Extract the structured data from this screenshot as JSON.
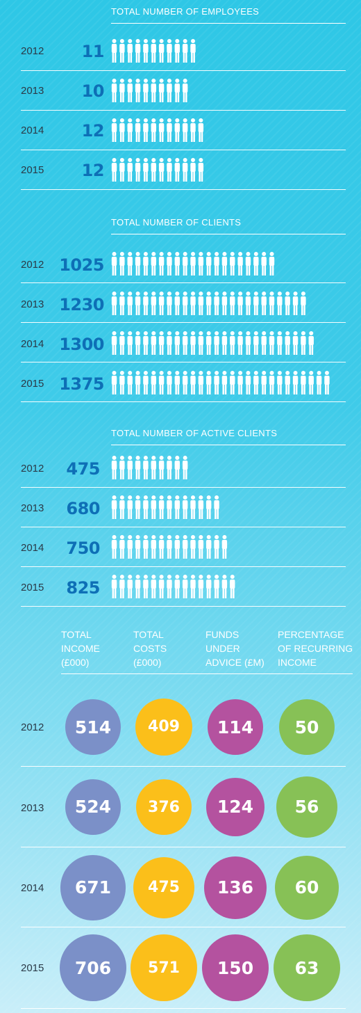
{
  "colors": {
    "income": "#7b90c8",
    "costs": "#fbbf1a",
    "funds": "#b4529f",
    "recurring": "#87c156",
    "number": "#0e6fb6",
    "year": "#2b3a48"
  },
  "icons": [
    "person-icon"
  ],
  "chart_data": [
    {
      "type": "bar",
      "title": "TOTAL NUMBER OF EMPLOYEES",
      "categories": [
        "2012",
        "2013",
        "2014",
        "2015"
      ],
      "values": [
        11,
        10,
        12,
        12
      ],
      "display_values": [
        "11",
        "10",
        "12",
        "12"
      ],
      "icon_counts": [
        11,
        10,
        12,
        12
      ]
    },
    {
      "type": "bar",
      "title": "TOTAL NUMBER OF CLIENTS",
      "categories": [
        "2012",
        "2013",
        "2014",
        "2015"
      ],
      "values": [
        1025,
        1230,
        1300,
        1375
      ],
      "display_values": [
        "1025",
        "1230",
        "1300",
        "1375"
      ],
      "icon_counts": [
        21,
        25,
        26,
        28
      ]
    },
    {
      "type": "bar",
      "title": "TOTAL NUMBER OF ACTIVE CLIENTS",
      "categories": [
        "2012",
        "2013",
        "2014",
        "2015"
      ],
      "values": [
        475,
        680,
        750,
        825
      ],
      "display_values": [
        "475",
        "680",
        "750",
        "825"
      ],
      "icon_counts": [
        10,
        14,
        15,
        16
      ]
    },
    {
      "type": "table",
      "categories": [
        "2012",
        "2013",
        "2014",
        "2015"
      ],
      "series": [
        {
          "name": "TOTAL INCOME (£000)",
          "header_lines": [
            "TOTAL",
            "INCOME",
            "(£000)"
          ],
          "values": [
            514,
            524,
            671,
            706
          ],
          "display_values": [
            "514",
            "524",
            "671",
            "706"
          ]
        },
        {
          "name": "TOTAL COSTS (£000)",
          "header_lines": [
            "TOTAL",
            "COSTS",
            "(£000)"
          ],
          "values": [
            409,
            376,
            475,
            571
          ],
          "display_values": [
            "409",
            "376",
            "475",
            "571"
          ]
        },
        {
          "name": "FUNDS UNDER ADVICE (£M)",
          "header_lines": [
            "FUNDS",
            "UNDER",
            "ADVICE (£M)"
          ],
          "values": [
            114,
            124,
            136,
            150
          ],
          "display_values": [
            "114",
            "124",
            "136",
            "150"
          ]
        },
        {
          "name": "PERCENTAGE OF RECURRING INCOME",
          "header_lines": [
            "PERCENTAGE",
            "OF RECURRING",
            "INCOME"
          ],
          "values": [
            50,
            56,
            60,
            63
          ],
          "display_values": [
            "50",
            "56",
            "60",
            "63"
          ]
        }
      ]
    }
  ]
}
